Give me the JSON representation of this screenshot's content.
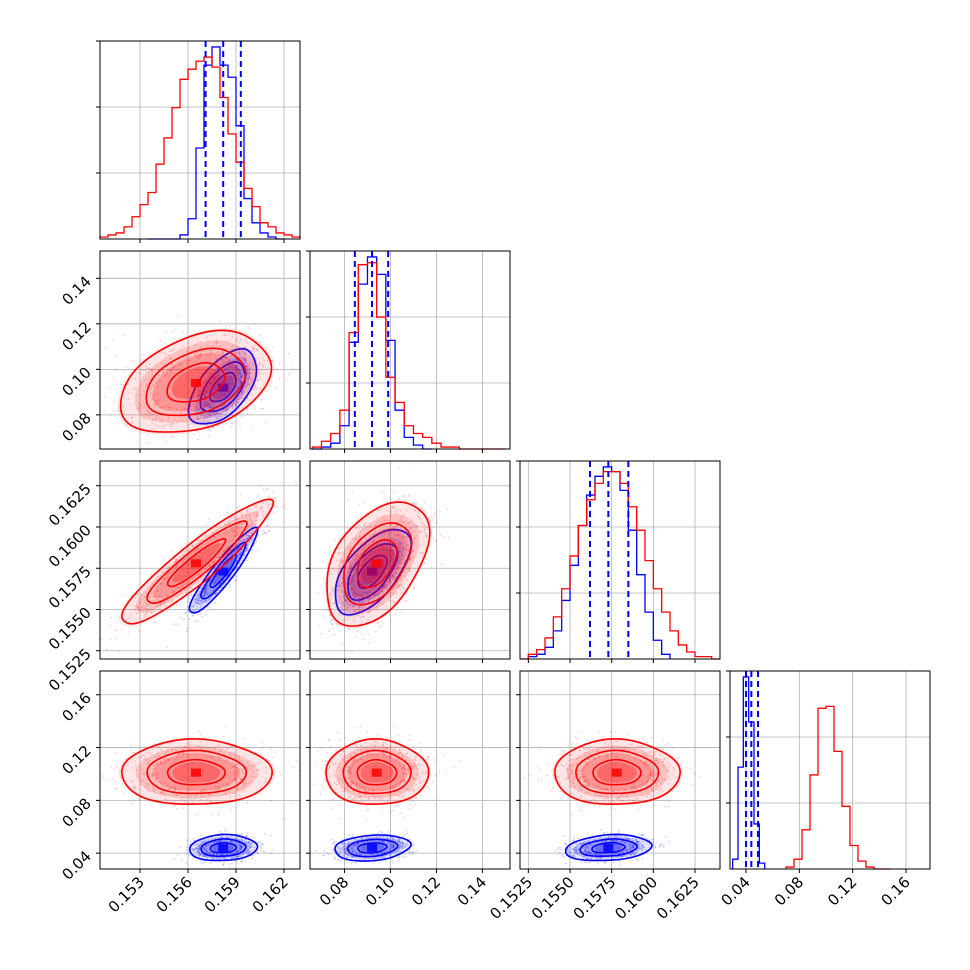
{
  "chart_data": {
    "type": "corner",
    "series": [
      {
        "name": "",
        "color": "#0000ff"
      },
      {
        "name": "",
        "color": "#ff0000"
      }
    ],
    "grid": true,
    "parameters": [
      {
        "index": 0,
        "range": [
          0.1505,
          0.163
        ],
        "ticks": [
          0.153,
          0.156,
          0.159,
          0.162
        ],
        "tick_labels": [
          "0.153",
          "0.156",
          "0.159",
          "0.162"
        ]
      },
      {
        "index": 1,
        "range": [
          0.065,
          0.152
        ],
        "ticks": [
          0.08,
          0.1,
          0.12,
          0.14
        ],
        "tick_labels": [
          "0.08",
          "0.10",
          "0.12",
          "0.14"
        ]
      },
      {
        "index": 2,
        "range": [
          0.152,
          0.164
        ],
        "ticks": [
          0.1525,
          0.155,
          0.1575,
          0.16,
          0.1625
        ],
        "tick_labels": [
          "0.1525",
          "0.1550",
          "0.1575",
          "0.1600",
          "0.1625"
        ]
      },
      {
        "index": 3,
        "range": [
          0.028,
          0.178
        ],
        "ticks": [
          0.04,
          0.08,
          0.12,
          0.16
        ],
        "tick_labels": [
          "0.04",
          "0.08",
          "0.12",
          "0.16"
        ]
      }
    ],
    "quantile_lines": {
      "color": "#0000ff",
      "values": [
        [
          0.1571,
          0.1582,
          0.1593
        ],
        [
          0.0845,
          0.092,
          0.099
        ],
        [
          0.1562,
          0.1573,
          0.1585
        ],
        [
          0.04,
          0.044,
          0.049
        ]
      ]
    },
    "histograms": [
      {
        "param": 0,
        "series": [
          {
            "series_index": 0,
            "edges": [
              0.1535,
              0.154,
              0.1545,
              0.155,
              0.1555,
              0.156,
              0.1565,
              0.157,
              0.1575,
              0.158,
              0.1585,
              0.159,
              0.1595,
              0.16,
              0.1605,
              0.161,
              0.1615,
              0.162
            ],
            "counts": [
              0,
              0,
              0,
              0,
              2,
              10,
              45,
              86,
              95,
              86,
              80,
              56,
              20,
              8,
              3,
              1,
              0
            ]
          },
          {
            "series_index": 1,
            "edges": [
              0.1505,
              0.151,
              0.1515,
              0.152,
              0.1525,
              0.153,
              0.1535,
              0.154,
              0.1545,
              0.155,
              0.1555,
              0.156,
              0.1565,
              0.157,
              0.1575,
              0.158,
              0.1585,
              0.159,
              0.1595,
              0.16,
              0.1605,
              0.161,
              0.1615,
              0.162,
              0.1625,
              0.163
            ],
            "counts": [
              1,
              2,
              3,
              6,
              11,
              17,
              23,
              37,
              50,
              65,
              79,
              84,
              88,
              90,
              85,
              70,
              52,
              38,
              25,
              16,
              8,
              6,
              3,
              2,
              1
            ]
          }
        ]
      },
      {
        "param": 1,
        "series": [
          {
            "series_index": 0,
            "edges": [
              0.066,
              0.07,
              0.074,
              0.078,
              0.082,
              0.086,
              0.09,
              0.094,
              0.098,
              0.102,
              0.106,
              0.11,
              0.114,
              0.118
            ],
            "counts": [
              0,
              1,
              3,
              12,
              55,
              85,
              99,
              90,
              56,
              20,
              6,
              2,
              0
            ]
          },
          {
            "series_index": 1,
            "edges": [
              0.066,
              0.07,
              0.074,
              0.078,
              0.082,
              0.086,
              0.09,
              0.094,
              0.098,
              0.102,
              0.106,
              0.11,
              0.114,
              0.118,
              0.122,
              0.126,
              0.13,
              0.134,
              0.138,
              0.142,
              0.146,
              0.15
            ],
            "counts": [
              1,
              4,
              8,
              20,
              60,
              95,
              96,
              68,
              37,
              24,
              12,
              8,
              6,
              3,
              1,
              1,
              0,
              0,
              0,
              0,
              0
            ]
          }
        ]
      },
      {
        "param": 2,
        "series": [
          {
            "series_index": 0,
            "edges": [
              0.1525,
              0.153,
              0.1535,
              0.154,
              0.1545,
              0.155,
              0.1555,
              0.156,
              0.1565,
              0.157,
              0.1575,
              0.158,
              0.1585,
              0.159,
              0.1595,
              0.16,
              0.1605,
              0.161
            ],
            "counts": [
              1,
              2,
              5,
              12,
              25,
              40,
              57,
              70,
              78,
              82,
              80,
              72,
              55,
              36,
              20,
              8,
              2
            ]
          },
          {
            "series_index": 1,
            "edges": [
              0.152,
              0.1525,
              0.153,
              0.1535,
              0.154,
              0.1545,
              0.155,
              0.1555,
              0.156,
              0.1565,
              0.157,
              0.1575,
              0.158,
              0.1585,
              0.159,
              0.1595,
              0.16,
              0.1605,
              0.161,
              0.1615,
              0.162,
              0.1625,
              0.163,
              0.1635,
              0.164
            ],
            "counts": [
              0,
              2,
              4,
              9,
              18,
              30,
              44,
              57,
              68,
              75,
              80,
              80,
              75,
              65,
              55,
              42,
              30,
              20,
              12,
              6,
              3,
              1,
              1,
              0
            ]
          }
        ]
      },
      {
        "param": 3,
        "series": [
          {
            "series_index": 0,
            "edges": [
              0.03,
              0.034,
              0.038,
              0.042,
              0.046,
              0.05,
              0.054
            ],
            "counts": [
              5,
              52,
              98,
              75,
              23,
              3
            ]
          },
          {
            "series_index": 1,
            "edges": [
              0.07,
              0.076,
              0.082,
              0.088,
              0.094,
              0.1,
              0.106,
              0.112,
              0.118,
              0.124,
              0.13,
              0.136,
              0.142,
              0.148
            ],
            "counts": [
              1,
              5,
              20,
              48,
              82,
              83,
              60,
              32,
              12,
              4,
              1,
              0,
              0
            ]
          }
        ]
      }
    ],
    "pairs": [
      {
        "x_param": 0,
        "y_param": 1,
        "series": [
          {
            "series_index": 0,
            "center": [
              0.1582,
              0.092
            ],
            "sd": [
              0.0009,
              0.007
            ],
            "corr": 0.55
          },
          {
            "series_index": 1,
            "center": [
              0.1565,
              0.094
            ],
            "sd": [
              0.002,
              0.0095
            ],
            "corr": 0.35
          }
        ]
      },
      {
        "x_param": 0,
        "y_param": 2,
        "series": [
          {
            "series_index": 0,
            "center": [
              0.1582,
              0.1573
            ],
            "sd": [
              0.0009,
              0.0011
            ],
            "corr": 0.92
          },
          {
            "series_index": 1,
            "center": [
              0.1565,
              0.1578
            ],
            "sd": [
              0.002,
              0.0016
            ],
            "corr": 0.92
          }
        ]
      },
      {
        "x_param": 0,
        "y_param": 3,
        "series": [
          {
            "series_index": 0,
            "center": [
              0.1582,
              0.044
            ],
            "sd": [
              0.0009,
              0.0042
            ],
            "corr": 0.1
          },
          {
            "series_index": 1,
            "center": [
              0.1565,
              0.101
            ],
            "sd": [
              0.002,
              0.0105
            ],
            "corr": 0.0
          }
        ]
      },
      {
        "x_param": 1,
        "y_param": 2,
        "series": [
          {
            "series_index": 0,
            "center": [
              0.092,
              0.1573
            ],
            "sd": [
              0.007,
              0.0011
            ],
            "corr": 0.6
          },
          {
            "series_index": 1,
            "center": [
              0.094,
              0.1578
            ],
            "sd": [
              0.0095,
              0.0016
            ],
            "corr": 0.45
          }
        ]
      },
      {
        "x_param": 1,
        "y_param": 3,
        "series": [
          {
            "series_index": 0,
            "center": [
              0.092,
              0.044
            ],
            "sd": [
              0.007,
              0.0042
            ],
            "corr": 0.2
          },
          {
            "series_index": 1,
            "center": [
              0.094,
              0.101
            ],
            "sd": [
              0.0095,
              0.0105
            ],
            "corr": 0.0
          }
        ]
      },
      {
        "x_param": 2,
        "y_param": 3,
        "series": [
          {
            "series_index": 0,
            "center": [
              0.1573,
              0.044
            ],
            "sd": [
              0.0011,
              0.0042
            ],
            "corr": 0.2
          },
          {
            "series_index": 1,
            "center": [
              0.1578,
              0.101
            ],
            "sd": [
              0.0016,
              0.0105
            ],
            "corr": 0.0
          }
        ]
      }
    ]
  }
}
